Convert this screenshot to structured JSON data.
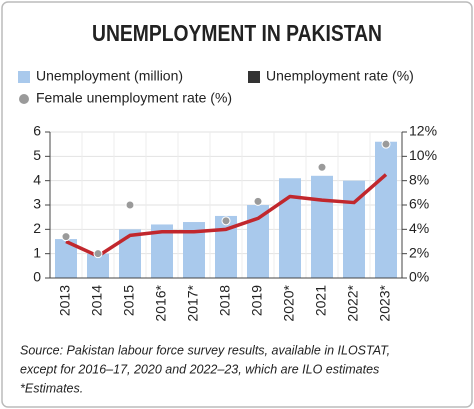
{
  "chart_data": {
    "type": "bar",
    "title": "UNEMPLOYMENT IN PAKISTAN",
    "categories": [
      "2013",
      "2014",
      "2015",
      "2016*",
      "2017*",
      "2018",
      "2019",
      "2020*",
      "2021",
      "2022*",
      "2023*"
    ],
    "series": [
      {
        "name": "Unemployment (million)",
        "type": "bar",
        "color": "#a9c9ec",
        "values": [
          1.6,
          1.0,
          2.0,
          2.2,
          2.3,
          2.55,
          3.0,
          4.1,
          4.2,
          4.0,
          5.6
        ]
      },
      {
        "name": "Unemployment rate (%)",
        "type": "line",
        "axis": "y2",
        "color": "#c1272d",
        "legend_color": "#333333",
        "values": [
          3.0,
          1.8,
          3.5,
          3.8,
          3.8,
          4.0,
          4.9,
          6.7,
          6.4,
          6.2,
          8.5
        ]
      },
      {
        "name": "Female unemployment rate (%)",
        "type": "scatter",
        "axis": "y2",
        "color": "#9a9a9a",
        "values": [
          3.4,
          2.0,
          6.0,
          null,
          null,
          4.7,
          6.3,
          null,
          9.1,
          null,
          11.0
        ]
      }
    ],
    "ylim": [
      0,
      6
    ],
    "yticks": [
      0,
      1,
      2,
      3,
      4,
      5,
      6
    ],
    "y2lim": [
      0,
      12
    ],
    "y2ticks": [
      {
        "value": 0,
        "label": "0%"
      },
      {
        "value": 2,
        "label": "2%"
      },
      {
        "value": 4,
        "label": "4%"
      },
      {
        "value": 6,
        "label": "6%"
      },
      {
        "value": 8,
        "label": "8%"
      },
      {
        "value": 10,
        "label": "10%"
      },
      {
        "value": 12,
        "label": "12%"
      }
    ],
    "grid": true,
    "source": [
      "Source: Pakistan labour force survey results, available in ILOSTAT,",
      "except for 2016–17, 2020 and 2022–23, which are ILO estimates",
      "*Estimates."
    ]
  }
}
